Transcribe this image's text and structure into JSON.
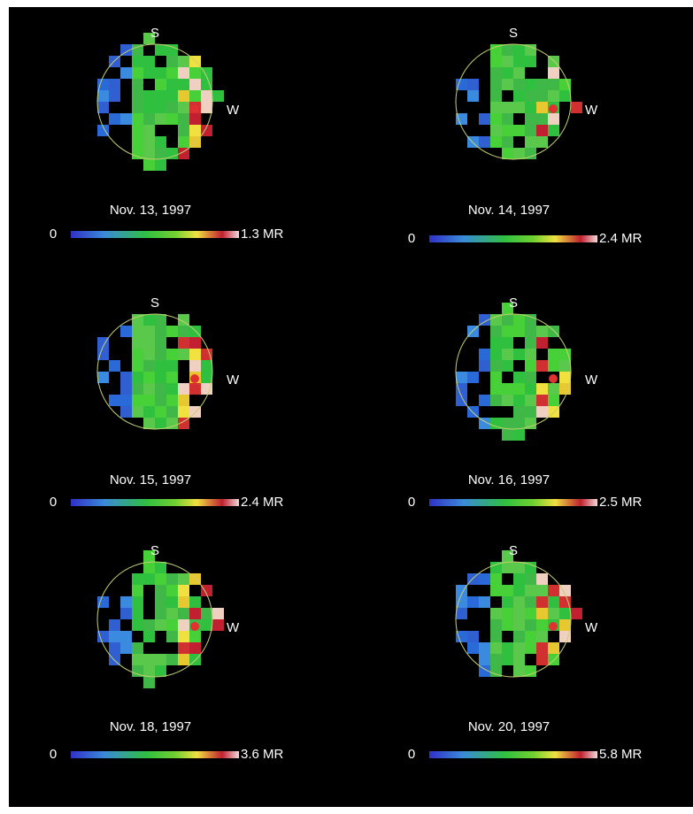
{
  "panels": [
    {
      "south": "S",
      "west": "W",
      "date": "Nov. 13, 1997",
      "scale_min": "0",
      "scale_max": "1.3 MR"
    },
    {
      "south": "S",
      "west": "W",
      "date": "Nov. 14, 1997",
      "scale_min": "0",
      "scale_max": "2.4 MR"
    },
    {
      "south": "S",
      "west": "W",
      "date": "Nov. 15, 1997",
      "scale_min": "0",
      "scale_max": "2.4 MR"
    },
    {
      "south": "S",
      "west": "W",
      "date": "Nov. 16, 1997",
      "scale_min": "0",
      "scale_max": "2.5 MR"
    },
    {
      "south": "S",
      "west": "W",
      "date": "Nov. 18, 1997",
      "scale_min": "0",
      "scale_max": "3.6 MR"
    },
    {
      "south": "S",
      "west": "W",
      "date": "Nov. 20, 1997",
      "scale_min": "0",
      "scale_max": "5.8 MR"
    }
  ]
}
